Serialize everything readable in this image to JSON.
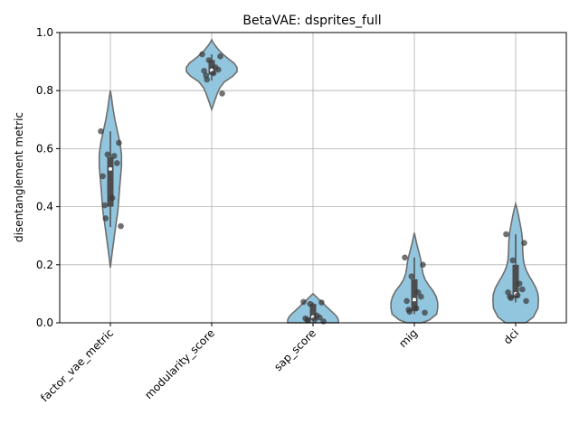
{
  "chart_data": {
    "type": "violin",
    "title": "BetaVAE: dsprites_full",
    "xlabel": "",
    "ylabel": "disentanglement metric",
    "ylim": [
      0.0,
      1.0
    ],
    "yticks": [
      "0.0",
      "0.2",
      "0.4",
      "0.6",
      "0.8",
      "1.0"
    ],
    "grid": true,
    "categories": [
      "factor_vae_metric",
      "modularity_score",
      "sap_score",
      "mig",
      "dci"
    ],
    "colors": {
      "violin_fill": "#92c5de",
      "violin_edge": "#6e6e6e",
      "box": "#4d4d4d",
      "median": "#ffffff",
      "points": "#3a3a3a",
      "grid": "#b0b0b0"
    },
    "series": [
      {
        "category": "factor_vae_metric",
        "kde_min": 0.19,
        "kde_max": 0.8,
        "q1": 0.4,
        "median": 0.53,
        "q3": 0.57,
        "whisker_low": 0.33,
        "whisker_high": 0.66,
        "points": [
          0.66,
          0.62,
          0.58,
          0.575,
          0.55,
          0.505,
          0.43,
          0.405,
          0.36,
          0.333
        ],
        "profile": [
          [
            0.19,
            0.0
          ],
          [
            0.22,
            0.04
          ],
          [
            0.26,
            0.1
          ],
          [
            0.3,
            0.16
          ],
          [
            0.34,
            0.22
          ],
          [
            0.38,
            0.29
          ],
          [
            0.42,
            0.33
          ],
          [
            0.46,
            0.36
          ],
          [
            0.5,
            0.4
          ],
          [
            0.54,
            0.44
          ],
          [
            0.58,
            0.44
          ],
          [
            0.62,
            0.38
          ],
          [
            0.66,
            0.28
          ],
          [
            0.7,
            0.18
          ],
          [
            0.74,
            0.1
          ],
          [
            0.78,
            0.04
          ],
          [
            0.8,
            0.0
          ]
        ]
      },
      {
        "category": "modularity_score",
        "kde_min": 0.735,
        "kde_max": 0.975,
        "q1": 0.855,
        "median": 0.87,
        "q3": 0.905,
        "whisker_low": 0.835,
        "whisker_high": 0.925,
        "points": [
          0.925,
          0.918,
          0.905,
          0.88,
          0.872,
          0.868,
          0.86,
          0.852,
          0.838,
          0.79
        ],
        "profile": [
          [
            0.735,
            0.0
          ],
          [
            0.76,
            0.1
          ],
          [
            0.79,
            0.22
          ],
          [
            0.81,
            0.32
          ],
          [
            0.83,
            0.5
          ],
          [
            0.85,
            0.84
          ],
          [
            0.865,
            1.0
          ],
          [
            0.88,
            1.0
          ],
          [
            0.895,
            0.88
          ],
          [
            0.91,
            0.65
          ],
          [
            0.925,
            0.45
          ],
          [
            0.94,
            0.28
          ],
          [
            0.955,
            0.14
          ],
          [
            0.965,
            0.06
          ],
          [
            0.975,
            0.0
          ]
        ]
      },
      {
        "category": "sap_score",
        "kde_min": -0.0,
        "kde_max": 0.1,
        "q1": 0.01,
        "median": 0.02,
        "q3": 0.065,
        "whisker_low": 0.005,
        "whisker_high": 0.07,
        "points": [
          0.072,
          0.07,
          0.065,
          0.025,
          0.018,
          0.015,
          0.012,
          0.01,
          0.008,
          0.005
        ],
        "profile": [
          [
            0.0,
            1.0
          ],
          [
            0.01,
            1.0
          ],
          [
            0.02,
            0.95
          ],
          [
            0.03,
            0.85
          ],
          [
            0.04,
            0.72
          ],
          [
            0.05,
            0.6
          ],
          [
            0.06,
            0.48
          ],
          [
            0.07,
            0.36
          ],
          [
            0.08,
            0.24
          ],
          [
            0.09,
            0.12
          ],
          [
            0.1,
            0.0
          ]
        ]
      },
      {
        "category": "mig",
        "kde_min": 0.0,
        "kde_max": 0.31,
        "q1": 0.04,
        "median": 0.08,
        "q3": 0.15,
        "whisker_low": 0.03,
        "whisker_high": 0.225,
        "points": [
          0.225,
          0.2,
          0.16,
          0.105,
          0.09,
          0.075,
          0.05,
          0.045,
          0.038,
          0.035
        ],
        "profile": [
          [
            0.0,
            0.3
          ],
          [
            0.01,
            0.6
          ],
          [
            0.03,
            0.88
          ],
          [
            0.05,
            0.92
          ],
          [
            0.07,
            0.92
          ],
          [
            0.09,
            0.86
          ],
          [
            0.11,
            0.74
          ],
          [
            0.13,
            0.56
          ],
          [
            0.15,
            0.42
          ],
          [
            0.17,
            0.34
          ],
          [
            0.19,
            0.3
          ],
          [
            0.21,
            0.27
          ],
          [
            0.23,
            0.22
          ],
          [
            0.25,
            0.16
          ],
          [
            0.27,
            0.1
          ],
          [
            0.29,
            0.05
          ],
          [
            0.31,
            0.0
          ]
        ]
      },
      {
        "category": "dci",
        "kde_min": 0.0,
        "kde_max": 0.41,
        "q1": 0.085,
        "median": 0.1,
        "q3": 0.2,
        "whisker_low": 0.07,
        "whisker_high": 0.305,
        "points": [
          0.305,
          0.275,
          0.215,
          0.135,
          0.115,
          0.105,
          0.095,
          0.09,
          0.085,
          0.075
        ],
        "profile": [
          [
            0.0,
            0.4
          ],
          [
            0.02,
            0.7
          ],
          [
            0.05,
            0.88
          ],
          [
            0.08,
            0.9
          ],
          [
            0.1,
            0.88
          ],
          [
            0.12,
            0.8
          ],
          [
            0.14,
            0.68
          ],
          [
            0.16,
            0.54
          ],
          [
            0.18,
            0.42
          ],
          [
            0.2,
            0.34
          ],
          [
            0.22,
            0.3
          ],
          [
            0.25,
            0.28
          ],
          [
            0.28,
            0.27
          ],
          [
            0.31,
            0.24
          ],
          [
            0.34,
            0.18
          ],
          [
            0.37,
            0.11
          ],
          [
            0.39,
            0.06
          ],
          [
            0.41,
            0.0
          ]
        ]
      }
    ]
  }
}
